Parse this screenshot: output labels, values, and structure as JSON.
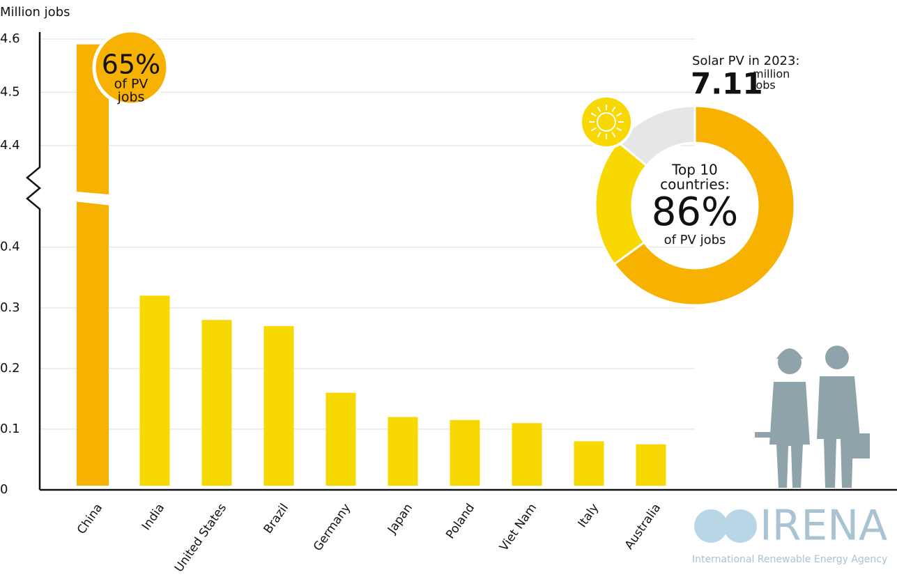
{
  "chart_data": [
    {
      "type": "bar",
      "y_label": "Million jobs",
      "categories": [
        "China",
        "India",
        "United States",
        "Brazil",
        "Germany",
        "Japan",
        "Poland",
        "Viet Nam",
        "Italy",
        "Australia"
      ],
      "values": [
        4.59,
        0.32,
        0.28,
        0.27,
        0.16,
        0.12,
        0.115,
        0.11,
        0.08,
        0.075
      ],
      "colors": [
        "#f7b100",
        "#f7d800",
        "#f7d800",
        "#f7d800",
        "#f7d800",
        "#f7d800",
        "#f7d800",
        "#f7d800",
        "#f7d800",
        "#f7d800"
      ],
      "ylim": [
        0,
        4.6
      ],
      "axis_break": [
        0.48,
        4.32
      ],
      "yticks": [
        0,
        0.1,
        0.2,
        0.3,
        0.4,
        4.4,
        4.5,
        4.6
      ],
      "grid": true
    },
    {
      "type": "donut",
      "title": "Solar PV in 2023:",
      "total": "7.11",
      "total_unit": [
        "million",
        "jobs"
      ],
      "center_title": [
        "Top 10",
        "countries:"
      ],
      "center_value": "86%",
      "center_caption": "of PV jobs",
      "values": [
        65,
        21,
        14
      ],
      "value_labels": [
        "65%",
        null,
        null
      ],
      "value_caption": [
        "of PV",
        "jobs"
      ],
      "colors": [
        "#f7b100",
        "#f7d800",
        "#e6e6e6"
      ]
    }
  ],
  "logo": {
    "name": "IRENA",
    "subtitle": "International Renewable Energy Agency"
  }
}
